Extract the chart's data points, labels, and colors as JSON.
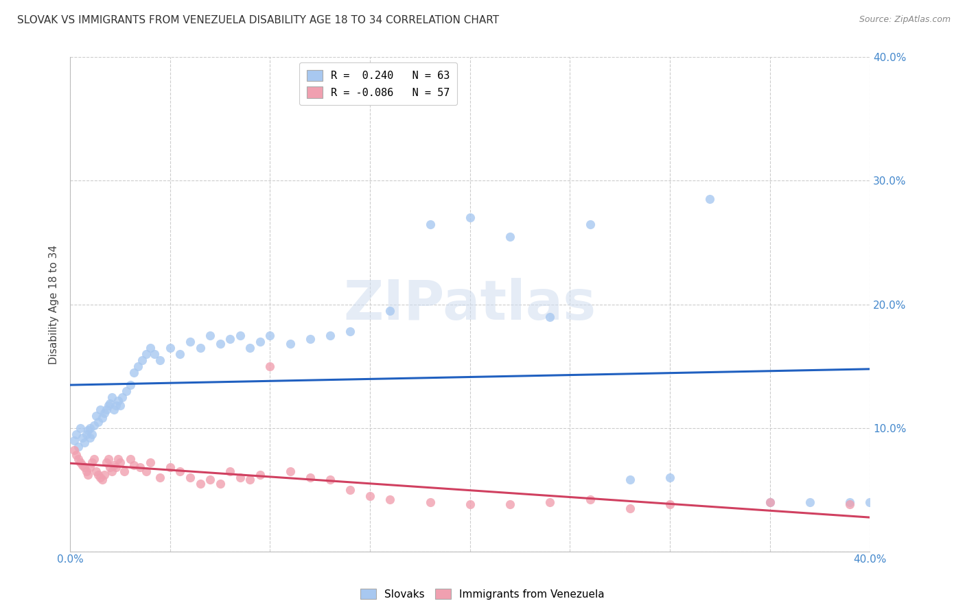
{
  "title": "SLOVAK VS IMMIGRANTS FROM VENEZUELA DISABILITY AGE 18 TO 34 CORRELATION CHART",
  "source": "Source: ZipAtlas.com",
  "ylabel": "Disability Age 18 to 34",
  "xlim": [
    0.0,
    0.4
  ],
  "ylim": [
    0.0,
    0.4
  ],
  "legend_r1": "R =  0.240   N = 63",
  "legend_r2": "R = -0.086   N = 57",
  "blue_color": "#a8c8f0",
  "pink_color": "#f0a0b0",
  "blue_line_color": "#2060c0",
  "pink_line_color": "#d04060",
  "watermark": "ZIPatlas",
  "slovaks_x": [
    0.002,
    0.003,
    0.004,
    0.005,
    0.006,
    0.007,
    0.008,
    0.009,
    0.01,
    0.01,
    0.011,
    0.012,
    0.013,
    0.014,
    0.015,
    0.016,
    0.017,
    0.018,
    0.019,
    0.02,
    0.021,
    0.022,
    0.023,
    0.024,
    0.025,
    0.026,
    0.028,
    0.03,
    0.032,
    0.034,
    0.036,
    0.038,
    0.04,
    0.042,
    0.045,
    0.05,
    0.055,
    0.06,
    0.065,
    0.07,
    0.075,
    0.08,
    0.085,
    0.09,
    0.095,
    0.1,
    0.11,
    0.12,
    0.13,
    0.14,
    0.16,
    0.18,
    0.2,
    0.22,
    0.24,
    0.26,
    0.28,
    0.3,
    0.32,
    0.35,
    0.37,
    0.39,
    0.4
  ],
  "slovaks_y": [
    0.09,
    0.095,
    0.085,
    0.1,
    0.092,
    0.088,
    0.095,
    0.098,
    0.092,
    0.1,
    0.095,
    0.102,
    0.11,
    0.105,
    0.115,
    0.108,
    0.112,
    0.115,
    0.118,
    0.12,
    0.125,
    0.115,
    0.118,
    0.122,
    0.118,
    0.125,
    0.13,
    0.135,
    0.145,
    0.15,
    0.155,
    0.16,
    0.165,
    0.16,
    0.155,
    0.165,
    0.16,
    0.17,
    0.165,
    0.175,
    0.168,
    0.172,
    0.175,
    0.165,
    0.17,
    0.175,
    0.168,
    0.172,
    0.175,
    0.178,
    0.195,
    0.265,
    0.27,
    0.255,
    0.19,
    0.265,
    0.058,
    0.06,
    0.285,
    0.04,
    0.04,
    0.04,
    0.04
  ],
  "venezuela_x": [
    0.002,
    0.003,
    0.004,
    0.005,
    0.006,
    0.007,
    0.008,
    0.009,
    0.01,
    0.011,
    0.012,
    0.013,
    0.014,
    0.015,
    0.016,
    0.017,
    0.018,
    0.019,
    0.02,
    0.021,
    0.022,
    0.023,
    0.024,
    0.025,
    0.027,
    0.03,
    0.032,
    0.035,
    0.038,
    0.04,
    0.045,
    0.05,
    0.055,
    0.06,
    0.065,
    0.07,
    0.075,
    0.08,
    0.085,
    0.09,
    0.095,
    0.1,
    0.11,
    0.12,
    0.13,
    0.14,
    0.15,
    0.16,
    0.18,
    0.2,
    0.22,
    0.24,
    0.26,
    0.28,
    0.3,
    0.35,
    0.39
  ],
  "venezuela_y": [
    0.082,
    0.078,
    0.075,
    0.072,
    0.07,
    0.068,
    0.065,
    0.062,
    0.068,
    0.072,
    0.075,
    0.065,
    0.062,
    0.06,
    0.058,
    0.062,
    0.072,
    0.075,
    0.068,
    0.065,
    0.07,
    0.068,
    0.075,
    0.072,
    0.065,
    0.075,
    0.07,
    0.068,
    0.065,
    0.072,
    0.06,
    0.068,
    0.065,
    0.06,
    0.055,
    0.058,
    0.055,
    0.065,
    0.06,
    0.058,
    0.062,
    0.15,
    0.065,
    0.06,
    0.058,
    0.05,
    0.045,
    0.042,
    0.04,
    0.038,
    0.038,
    0.04,
    0.042,
    0.035,
    0.038,
    0.04,
    0.038
  ]
}
